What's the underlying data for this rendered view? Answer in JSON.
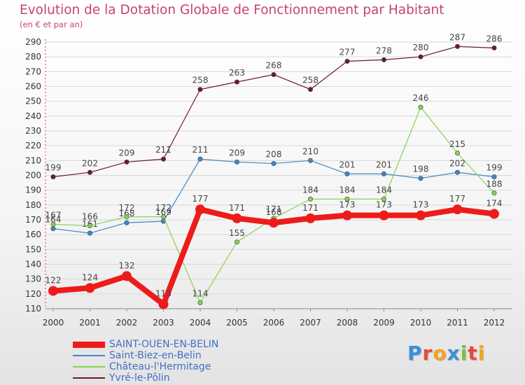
{
  "logo_text": "Proxiti",
  "colors": {
    "title": "#c8426e",
    "grid": "#d8d8d8",
    "axis_text": "#333333"
  },
  "chart_data": {
    "type": "line",
    "title": "Evolution de la Dotation Globale de Fonctionnement par Habitant",
    "subtitle": "(en € et par an)",
    "categories": [
      "2000",
      "2001",
      "2002",
      "2003",
      "2004",
      "2005",
      "2006",
      "2007",
      "2008",
      "2009",
      "2010",
      "2011",
      "2012"
    ],
    "ylim": [
      110,
      290
    ],
    "yticks": [
      110,
      120,
      130,
      140,
      150,
      160,
      170,
      180,
      190,
      200,
      210,
      220,
      230,
      240,
      250,
      260,
      270,
      280,
      290
    ],
    "grid": true,
    "legend_position": "bottom-left",
    "series": [
      {
        "name": "Yvré-le-Pôlin",
        "color": "#6e1a24",
        "values": [
          199,
          202,
          209,
          211,
          258,
          263,
          268,
          258,
          277,
          278,
          280,
          287,
          286
        ]
      },
      {
        "name": "Saint-Biez-en-Belin",
        "color": "#3f87c7",
        "values": [
          164,
          161,
          168,
          169,
          211,
          209,
          208,
          210,
          201,
          201,
          198,
          202,
          199
        ]
      },
      {
        "name": "Château-l'Hermitage",
        "color": "#84d352",
        "values": [
          167,
          166,
          172,
          172,
          114,
          155,
          171,
          184,
          184,
          184,
          246,
          215,
          188
        ]
      },
      {
        "name": "SAINT-OUEN-EN-BELIN",
        "color": "#ee1b1b",
        "values": [
          122,
          124,
          132,
          113,
          177,
          171,
          168,
          171,
          173,
          173,
          173,
          177,
          174
        ]
      }
    ]
  }
}
